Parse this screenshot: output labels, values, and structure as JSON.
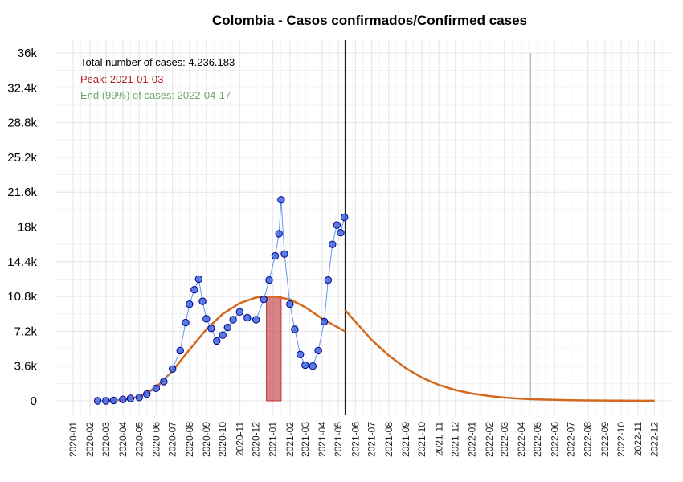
{
  "chart_data": {
    "type": "scatter",
    "title": "Colombia - Casos confirmados/Confirmed cases",
    "xlabel": "",
    "ylabel": "",
    "x_range": [
      "2019-12-01",
      "2022-12-31"
    ],
    "ylim": [
      0,
      36000
    ],
    "yticks": [
      0,
      3600,
      7200,
      10800,
      14400,
      18000,
      21600,
      25200,
      28800,
      32400,
      36000
    ],
    "ytick_labels": [
      "0",
      "3.6k",
      "7.2k",
      "10.8k",
      "14.4k",
      "18k",
      "21.6k",
      "25.2k",
      "28.8k",
      "32.4k",
      "36k"
    ],
    "xtick_labels": [
      "2020-01",
      "2020-02",
      "2020-03",
      "2020-04",
      "2020-05",
      "2020-06",
      "2020-07",
      "2020-08",
      "2020-09",
      "2020-10",
      "2020-11",
      "2020-12",
      "2021-01",
      "2021-02",
      "2021-03",
      "2021-04",
      "2021-05",
      "2021-06",
      "2021-07",
      "2021-08",
      "2021-09",
      "2021-10",
      "2021-11",
      "2021-12",
      "2022-01",
      "2022-02",
      "2022-03",
      "2022-04",
      "2022-05",
      "2022-06",
      "2022-07",
      "2022-08",
      "2022-09",
      "2022-10",
      "2022-11",
      "2022-12"
    ],
    "grid": true,
    "annotations": {
      "total": "Total number of cases: 4.236.183",
      "peak": "Peak: 2021-01-03",
      "end": "End (99%) of cases: 2022-04-17"
    },
    "vertical_lines": {
      "today": "2021-05-13",
      "end_of_cases": "2022-04-17"
    },
    "peak_band": {
      "start": "2020-12-20",
      "end": "2021-01-16",
      "value": 10800
    },
    "observed_daily_cases": [
      {
        "date": "2020-02-15",
        "value": 0
      },
      {
        "date": "2020-03-01",
        "value": 0
      },
      {
        "date": "2020-03-15",
        "value": 50
      },
      {
        "date": "2020-04-01",
        "value": 150
      },
      {
        "date": "2020-04-15",
        "value": 250
      },
      {
        "date": "2020-05-01",
        "value": 350
      },
      {
        "date": "2020-05-15",
        "value": 700
      },
      {
        "date": "2020-06-01",
        "value": 1300
      },
      {
        "date": "2020-06-15",
        "value": 2000
      },
      {
        "date": "2020-07-01",
        "value": 3300
      },
      {
        "date": "2020-07-15",
        "value": 5200
      },
      {
        "date": "2020-07-25",
        "value": 8100
      },
      {
        "date": "2020-08-01",
        "value": 10000
      },
      {
        "date": "2020-08-10",
        "value": 11500
      },
      {
        "date": "2020-08-18",
        "value": 12600
      },
      {
        "date": "2020-08-25",
        "value": 10300
      },
      {
        "date": "2020-09-01",
        "value": 8500
      },
      {
        "date": "2020-09-10",
        "value": 7500
      },
      {
        "date": "2020-09-20",
        "value": 6200
      },
      {
        "date": "2020-10-01",
        "value": 6800
      },
      {
        "date": "2020-10-10",
        "value": 7600
      },
      {
        "date": "2020-10-20",
        "value": 8400
      },
      {
        "date": "2020-11-01",
        "value": 9200
      },
      {
        "date": "2020-11-15",
        "value": 8600
      },
      {
        "date": "2020-12-01",
        "value": 8400
      },
      {
        "date": "2020-12-15",
        "value": 10500
      },
      {
        "date": "2020-12-25",
        "value": 12500
      },
      {
        "date": "2021-01-05",
        "value": 15000
      },
      {
        "date": "2021-01-12",
        "value": 17300
      },
      {
        "date": "2021-01-16",
        "value": 20800
      },
      {
        "date": "2021-01-22",
        "value": 15200
      },
      {
        "date": "2021-02-01",
        "value": 10000
      },
      {
        "date": "2021-02-10",
        "value": 7400
      },
      {
        "date": "2021-02-20",
        "value": 4800
      },
      {
        "date": "2021-03-01",
        "value": 3700
      },
      {
        "date": "2021-03-15",
        "value": 3600
      },
      {
        "date": "2021-03-25",
        "value": 5200
      },
      {
        "date": "2021-04-05",
        "value": 8200
      },
      {
        "date": "2021-04-12",
        "value": 12500
      },
      {
        "date": "2021-04-20",
        "value": 16200
      },
      {
        "date": "2021-04-28",
        "value": 18200
      },
      {
        "date": "2021-05-05",
        "value": 17400
      },
      {
        "date": "2021-05-12",
        "value": 19000
      }
    ],
    "fitted_curve": [
      {
        "date": "2020-03-01",
        "value": 0
      },
      {
        "date": "2020-04-01",
        "value": 100
      },
      {
        "date": "2020-05-01",
        "value": 420
      },
      {
        "date": "2020-06-01",
        "value": 1400
      },
      {
        "date": "2020-07-01",
        "value": 3100
      },
      {
        "date": "2020-08-01",
        "value": 5300
      },
      {
        "date": "2020-09-01",
        "value": 7400
      },
      {
        "date": "2020-10-01",
        "value": 9000
      },
      {
        "date": "2020-11-01",
        "value": 10100
      },
      {
        "date": "2020-12-01",
        "value": 10700
      },
      {
        "date": "2021-01-03",
        "value": 10800
      },
      {
        "date": "2021-02-01",
        "value": 10500
      },
      {
        "date": "2021-03-01",
        "value": 9700
      },
      {
        "date": "2021-04-01",
        "value": 8500
      },
      {
        "date": "2021-05-13",
        "value": 7200
      }
    ],
    "projection_curve": [
      {
        "date": "2021-05-13",
        "value": 9400
      },
      {
        "date": "2021-06-01",
        "value": 8200
      },
      {
        "date": "2021-07-01",
        "value": 6300
      },
      {
        "date": "2021-08-01",
        "value": 4700
      },
      {
        "date": "2021-09-01",
        "value": 3400
      },
      {
        "date": "2021-10-01",
        "value": 2400
      },
      {
        "date": "2021-11-01",
        "value": 1650
      },
      {
        "date": "2021-12-01",
        "value": 1120
      },
      {
        "date": "2022-01-01",
        "value": 750
      },
      {
        "date": "2022-02-01",
        "value": 500
      },
      {
        "date": "2022-03-01",
        "value": 330
      },
      {
        "date": "2022-04-01",
        "value": 220
      },
      {
        "date": "2022-05-01",
        "value": 150
      },
      {
        "date": "2022-06-01",
        "value": 100
      },
      {
        "date": "2022-07-01",
        "value": 70
      },
      {
        "date": "2022-08-01",
        "value": 45
      },
      {
        "date": "2022-09-01",
        "value": 30
      },
      {
        "date": "2022-10-01",
        "value": 20
      },
      {
        "date": "2022-11-01",
        "value": 10
      },
      {
        "date": "2022-12-01",
        "value": 5
      }
    ],
    "colors": {
      "points_fill": "#4169e1",
      "points_stroke": "#00008b",
      "points_line": "#6495ed",
      "fitted_curve": "#d2691e",
      "peak_band": "#c0303a",
      "today_line": "#000000",
      "end_line": "#8fbc8f",
      "total_text": "#000000",
      "peak_text": "#b22222",
      "end_text": "#6aaa6a"
    }
  }
}
